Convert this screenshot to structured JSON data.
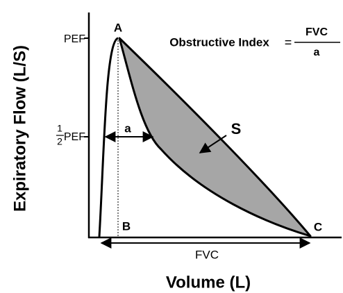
{
  "axes": {
    "x_label": "Volume (L)",
    "y_label": "Expiratory Flow (L/S)"
  },
  "y_ticks": {
    "pef": "PEF",
    "half_pef": {
      "numerator": "1",
      "denominator": "2",
      "label": "PEF"
    }
  },
  "points": {
    "a": "A",
    "b": "B",
    "c": "C"
  },
  "width_label": "a",
  "area_label": "S",
  "baseline_label": "FVC",
  "formula": {
    "name": "Obstructive Index",
    "equals": "=",
    "numerator": "FVC",
    "denominator": "a"
  }
}
